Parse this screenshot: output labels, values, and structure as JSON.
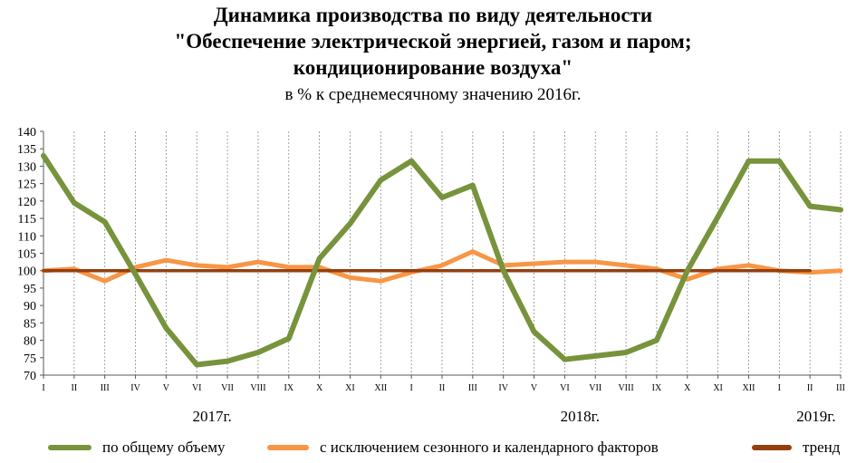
{
  "chart_data": {
    "type": "line",
    "title_lines": [
      "Динамика производства по виду деятельности",
      "\"Обеспечение электрической энергией, газом и паром;",
      "кондиционирование воздуха\""
    ],
    "subtitle": "в % к среднемесячному значению 2016г.",
    "categories": [
      "I",
      "II",
      "III",
      "IV",
      "V",
      "VI",
      "VII",
      "VIII",
      "IX",
      "X",
      "XI",
      "XII",
      "I",
      "II",
      "III",
      "IV",
      "V",
      "VI",
      "VII",
      "VIII",
      "IX",
      "X",
      "XI",
      "XII",
      "I",
      "II",
      "III"
    ],
    "year_labels": [
      {
        "label": "2017г.",
        "index": 5.5
      },
      {
        "label": "2018г.",
        "index": 17.5
      },
      {
        "label": "2019г.",
        "index": 25.2
      }
    ],
    "ylim": [
      70,
      140
    ],
    "yticks": [
      70,
      75,
      80,
      85,
      90,
      95,
      100,
      105,
      110,
      115,
      120,
      125,
      130,
      135,
      140
    ],
    "grid": "vertical",
    "legend_position": "bottom",
    "series": [
      {
        "name": "по общему объему",
        "color": "#77933c",
        "values": [
          133,
          119.5,
          114,
          99,
          83.5,
          73,
          74,
          76.5,
          80.5,
          103.5,
          113.5,
          126,
          131.5,
          121,
          124.5,
          100,
          82.5,
          74.5,
          75.5,
          76.5,
          80,
          100,
          115.5,
          131.5,
          131.5,
          118.5,
          117.5
        ]
      },
      {
        "name": "с исключением  сезонного и календарного факторов",
        "color": "#f79646",
        "values": [
          100,
          100.5,
          97,
          101,
          103,
          101.5,
          101,
          102.5,
          101,
          101,
          98,
          97,
          99.5,
          101.5,
          105.5,
          101.5,
          102,
          102.5,
          102.5,
          101.5,
          100.5,
          97.5,
          100.5,
          101.5,
          100,
          99.5,
          100
        ]
      },
      {
        "name": "тренд",
        "color": "#953f0f",
        "values": [
          100,
          100,
          100,
          100,
          100,
          100,
          100,
          100,
          100,
          100,
          100,
          100,
          100,
          100,
          100,
          100,
          100,
          100,
          100,
          100,
          100,
          100,
          100,
          100,
          100,
          100,
          null
        ]
      }
    ]
  }
}
